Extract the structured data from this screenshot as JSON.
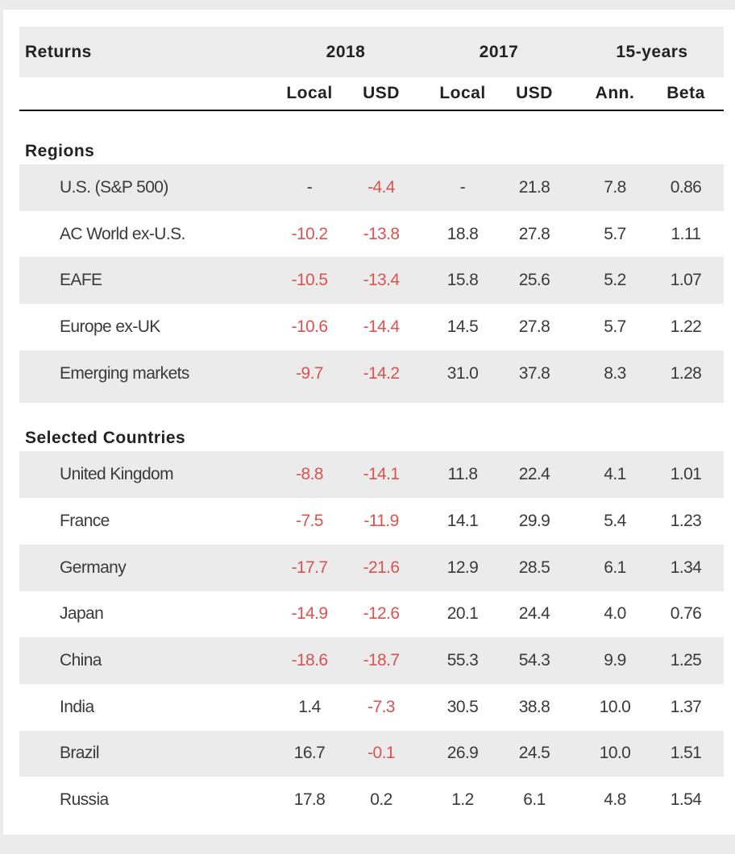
{
  "header": {
    "title": "Returns",
    "years": [
      "2018",
      "2017",
      "15-years"
    ],
    "subcolumns": [
      "Local",
      "USD",
      "Local",
      "USD",
      "Ann.",
      "Beta"
    ]
  },
  "sections": [
    {
      "title": "Regions",
      "rows": [
        {
          "name": "U.S. (S&P 500)",
          "values": [
            "-",
            "-4.4",
            "-",
            "21.8",
            "7.8",
            "0.86"
          ]
        },
        {
          "name": "AC World ex-U.S.",
          "values": [
            "-10.2",
            "-13.8",
            "18.8",
            "27.8",
            "5.7",
            "1.11"
          ]
        },
        {
          "name": "EAFE",
          "values": [
            "-10.5",
            "-13.4",
            "15.8",
            "25.6",
            "5.2",
            "1.07"
          ]
        },
        {
          "name": "Europe ex-UK",
          "values": [
            "-10.6",
            "-14.4",
            "14.5",
            "27.8",
            "5.7",
            "1.22"
          ]
        },
        {
          "name": "Emerging markets",
          "values": [
            "-9.7",
            "-14.2",
            "31.0",
            "37.8",
            "8.3",
            "1.28"
          ]
        }
      ]
    },
    {
      "title": "Selected Countries",
      "rows": [
        {
          "name": "United Kingdom",
          "values": [
            "-8.8",
            "-14.1",
            "11.8",
            "22.4",
            "4.1",
            "1.01"
          ]
        },
        {
          "name": "France",
          "values": [
            "-7.5",
            "-11.9",
            "14.1",
            "29.9",
            "5.4",
            "1.23"
          ]
        },
        {
          "name": "Germany",
          "values": [
            "-17.7",
            "-21.6",
            "12.9",
            "28.5",
            "6.1",
            "1.34"
          ]
        },
        {
          "name": "Japan",
          "values": [
            "-14.9",
            "-12.6",
            "20.1",
            "24.4",
            "4.0",
            "0.76"
          ]
        },
        {
          "name": "China",
          "values": [
            "-18.6",
            "-18.7",
            "55.3",
            "54.3",
            "9.9",
            "1.25"
          ]
        },
        {
          "name": "India",
          "values": [
            "1.4",
            "-7.3",
            "30.5",
            "38.8",
            "10.0",
            "1.37"
          ]
        },
        {
          "name": "Brazil",
          "values": [
            "16.7",
            "-0.1",
            "26.9",
            "24.5",
            "10.0",
            "1.51"
          ]
        },
        {
          "name": "Russia",
          "values": [
            "17.8",
            "0.2",
            "1.2",
            "6.1",
            "4.8",
            "1.54"
          ]
        }
      ]
    }
  ],
  "colors": {
    "negative": "#d9534f",
    "shade": "#ebebeb",
    "text": "#3a3a3a"
  }
}
